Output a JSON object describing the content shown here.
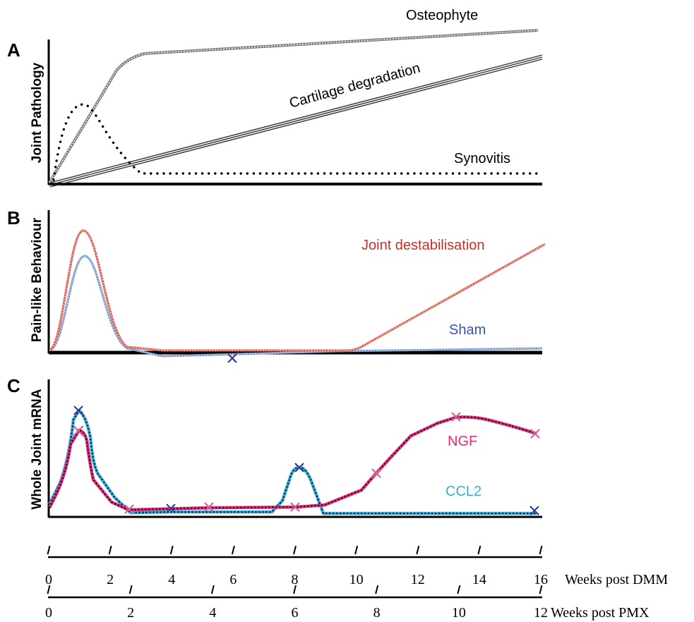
{
  "panels": {
    "a": {
      "letter": "A",
      "ylabel": "Joint Pathology",
      "curves": {
        "osteophyte": "Osteophyte",
        "cartilage": "Cartilage degradation",
        "synovitis": "Synovitis"
      }
    },
    "b": {
      "letter": "B",
      "ylabel": "Pain-like Behaviour",
      "curves": {
        "destab": "Joint destabilisation",
        "sham": "Sham"
      }
    },
    "c": {
      "letter": "C",
      "ylabel": "Whole Joint mRNA",
      "curves": {
        "ngf": "NGF",
        "ccl2": "CCL2"
      }
    }
  },
  "axes": {
    "dmm": {
      "label": "Weeks post DMM",
      "ticks": [
        "0",
        "2",
        "4",
        "6",
        "8",
        "10",
        "12",
        "14",
        "16"
      ]
    },
    "pmx": {
      "label": "Weeks post PMX",
      "ticks": [
        "0",
        "2",
        "4",
        "6",
        "8",
        "10",
        "12"
      ]
    }
  },
  "colors": {
    "axis": "#000000",
    "osteophyte": "#808080",
    "cartilage": "#404040",
    "synovitis": "#000000",
    "destab": "#e05545",
    "destab_label": "#c8312a",
    "sham": "#6f93c9",
    "sham_label": "#3555a6",
    "ngf": "#e22a78",
    "ngf_marker": "#d45fa3",
    "ccl2": "#33aee0",
    "ccl2_marker": "#2e3f92"
  }
}
